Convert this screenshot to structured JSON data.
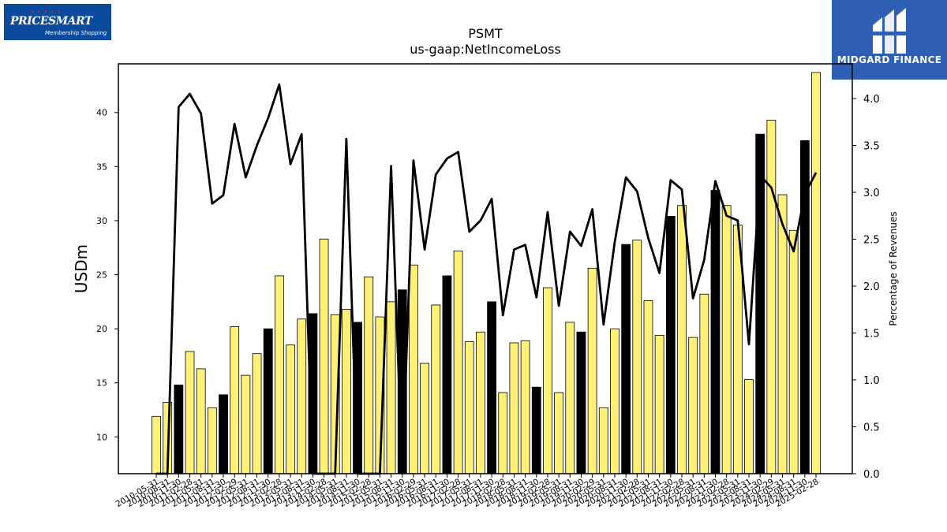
{
  "logos": {
    "left_brand": "PRICESMART",
    "left_tagline": "Membership Shopping",
    "right_brand": "MIDGARD FINANCE"
  },
  "chart_data": {
    "type": "bar",
    "title": "PSMT",
    "subtitle": "us-gaap:NetIncomeLoss",
    "ylabel": "USDm",
    "y2label": "Percentage of Revenues",
    "ylim": [
      6.6,
      44.5
    ],
    "y2lim": [
      0,
      4.37
    ],
    "yticks": [
      10,
      15,
      20,
      25,
      30,
      35,
      40
    ],
    "y2ticks": [
      0.0,
      0.5,
      1.0,
      1.5,
      2.0,
      2.5,
      3.0,
      3.5,
      4.0
    ],
    "categories": [
      "2010-05-31",
      "2010-08-31",
      "2010-11-30",
      "2011-02-28",
      "2011-05-31",
      "2011-08-31",
      "2011-11-30",
      "2012-02-29",
      "2012-05-31",
      "2012-08-31",
      "2012-11-30",
      "2013-02-28",
      "2013-05-31",
      "2013-08-31",
      "2013-11-30",
      "2014-02-28",
      "2014-05-31",
      "2014-08-31",
      "2014-11-30",
      "2015-02-28",
      "2015-05-31",
      "2015-08-31",
      "2015-11-30",
      "2016-02-29",
      "2016-05-31",
      "2016-08-31",
      "2016-11-30",
      "2017-02-28",
      "2017-05-31",
      "2017-08-31",
      "2017-11-30",
      "2018-02-28",
      "2018-05-31",
      "2018-08-31",
      "2018-11-30",
      "2019-02-28",
      "2019-05-31",
      "2019-08-31",
      "2019-11-30",
      "2020-02-29",
      "2020-05-31",
      "2020-08-31",
      "2020-11-30",
      "2021-02-28",
      "2021-05-31",
      "2021-08-31",
      "2021-11-30",
      "2022-02-28",
      "2022-05-31",
      "2022-08-31",
      "2022-11-30",
      "2023-02-28",
      "2023-05-31",
      "2023-08-31",
      "2023-11-30",
      "2024-02-29",
      "2024-05-31",
      "2024-08-31",
      "2024-11-30",
      "2025-02-28"
    ],
    "series": [
      {
        "type": "bar",
        "values": [
          11.9,
          13.2,
          14.8,
          17.9,
          16.3,
          12.7,
          13.9,
          20.2,
          15.7,
          17.7,
          20.0,
          24.9,
          18.5,
          20.9,
          21.4,
          28.3,
          21.3,
          21.8,
          20.6,
          24.8,
          21.1,
          22.5,
          23.6,
          25.9,
          16.8,
          22.2,
          24.9,
          27.2,
          18.8,
          19.7,
          22.5,
          14.1,
          18.7,
          18.9,
          14.6,
          23.8,
          14.1,
          20.6,
          19.7,
          25.6,
          12.7,
          20.0,
          27.8,
          28.2,
          22.6,
          19.4,
          30.4,
          31.4,
          19.2,
          23.2,
          32.8,
          31.4,
          29.6,
          15.3,
          38.0,
          39.3,
          32.4,
          29.1,
          37.4,
          43.7
        ],
        "fiscal_year_end": [
          false,
          false,
          true,
          false,
          false,
          false,
          true,
          false,
          false,
          false,
          true,
          false,
          false,
          false,
          true,
          false,
          false,
          false,
          true,
          false,
          false,
          false,
          true,
          false,
          false,
          false,
          true,
          false,
          false,
          false,
          true,
          false,
          false,
          false,
          true,
          false,
          false,
          false,
          true,
          false,
          false,
          false,
          true,
          false,
          false,
          false,
          true,
          false,
          false,
          false,
          true,
          false,
          false,
          false,
          true,
          false,
          false,
          false,
          true,
          false
        ],
        "colors": {
          "quarter": "#fff07a",
          "fiscal_year_end": "#000000"
        }
      },
      {
        "type": "line",
        "axis": "secondary",
        "color": "#000000",
        "values": [
          0.0,
          0.0,
          3.91,
          4.05,
          3.84,
          2.88,
          2.97,
          3.73,
          3.16,
          3.5,
          3.79,
          4.15,
          3.3,
          3.62,
          0.0,
          0.0,
          0.0,
          3.57,
          0.0,
          0.0,
          0.0,
          3.28,
          0.0,
          3.34,
          2.39,
          3.19,
          3.36,
          3.43,
          2.58,
          2.7,
          2.93,
          1.69,
          2.39,
          2.44,
          1.88,
          2.79,
          1.79,
          2.58,
          2.43,
          2.82,
          1.59,
          2.47,
          3.16,
          3.01,
          2.51,
          2.14,
          3.13,
          3.03,
          1.87,
          2.28,
          3.12,
          2.75,
          2.7,
          1.38,
          3.18,
          3.05,
          2.66,
          2.37,
          2.98,
          3.21
        ]
      }
    ],
    "grid": false,
    "legend": "none"
  }
}
